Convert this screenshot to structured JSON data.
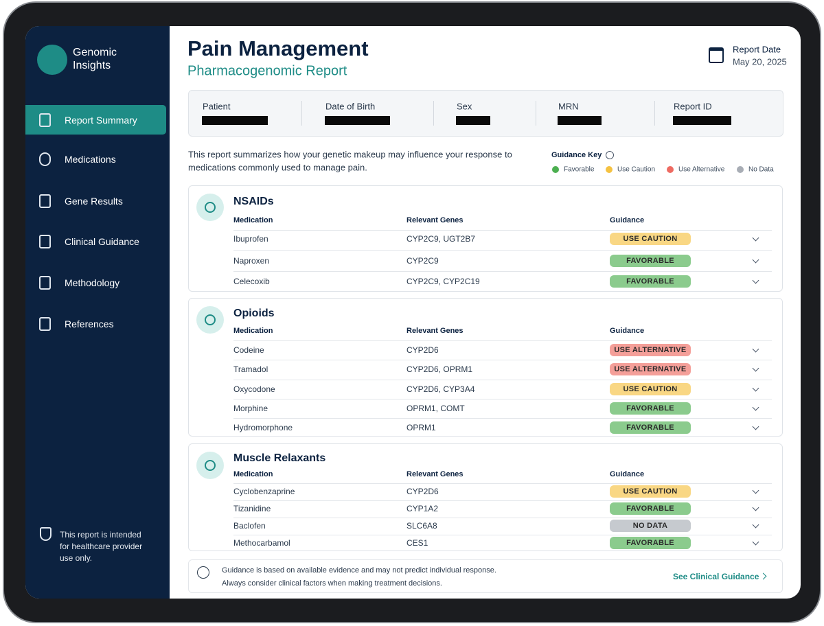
{
  "sidebar": {
    "brand": [
      "Genomic",
      "Insights"
    ],
    "nav": [
      "Report Summary",
      "Medications",
      "Gene Results",
      "Clinical Guidance",
      "Methodology",
      "References"
    ],
    "note": [
      "This report is intended",
      "for healthcare provider",
      "use only."
    ]
  },
  "header": {
    "title": "Pain Management",
    "subtitle": "Pharmacogenomic Report",
    "date_label": "Report Date",
    "date": "May 20, 2025"
  },
  "patient_fields": [
    "Patient",
    "Date of Birth",
    "Sex",
    "MRN",
    "Report ID"
  ],
  "intro": [
    "This report summarizes how your genetic makeup may influence your response to",
    "medications commonly used to manage pain."
  ],
  "guidance_key": {
    "title": "Guidance Key",
    "items": [
      {
        "label": "Favorable",
        "color": "#4caf50"
      },
      {
        "label": "Use Caution",
        "color": "#f5c242"
      },
      {
        "label": "Use Alternative",
        "color": "#ee6b62"
      },
      {
        "label": "No Data",
        "color": "#a8adb5"
      }
    ]
  },
  "columns": [
    "Medication",
    "Relevant Genes",
    "Guidance"
  ],
  "sections": [
    {
      "title": "NSAIDs",
      "rows": [
        [
          "Ibuprofen",
          "CYP2C9, UGT2B7",
          "USE CAUTION"
        ],
        [
          "Naproxen",
          "CYP2C9",
          "FAVORABLE"
        ],
        [
          "Celecoxib",
          "CYP2C9, CYP2C19",
          "FAVORABLE"
        ]
      ]
    },
    {
      "title": "Opioids",
      "rows": [
        [
          "Codeine",
          "CYP2D6",
          "USE ALTERNATIVE"
        ],
        [
          "Tramadol",
          "CYP2D6, OPRM1",
          "USE ALTERNATIVE"
        ],
        [
          "Oxycodone",
          "CYP2D6, CYP3A4",
          "USE CAUTION"
        ],
        [
          "Morphine",
          "OPRM1, COMT",
          "FAVORABLE"
        ],
        [
          "Hydromorphone",
          "OPRM1",
          "FAVORABLE"
        ]
      ]
    },
    {
      "title": "Muscle Relaxants",
      "rows": [
        [
          "Cyclobenzaprine",
          "CYP2D6",
          "USE CAUTION"
        ],
        [
          "Tizanidine",
          "CYP1A2",
          "FAVORABLE"
        ],
        [
          "Baclofen",
          "SLC6A8",
          "NO DATA"
        ],
        [
          "Methocarbamol",
          "CES1",
          "FAVORABLE"
        ]
      ]
    }
  ],
  "footer": {
    "note": [
      "Guidance is based on available evidence and may not predict individual response.",
      "Always consider clinical factors when making treatment decisions."
    ],
    "link": "See Clinical Guidance"
  }
}
